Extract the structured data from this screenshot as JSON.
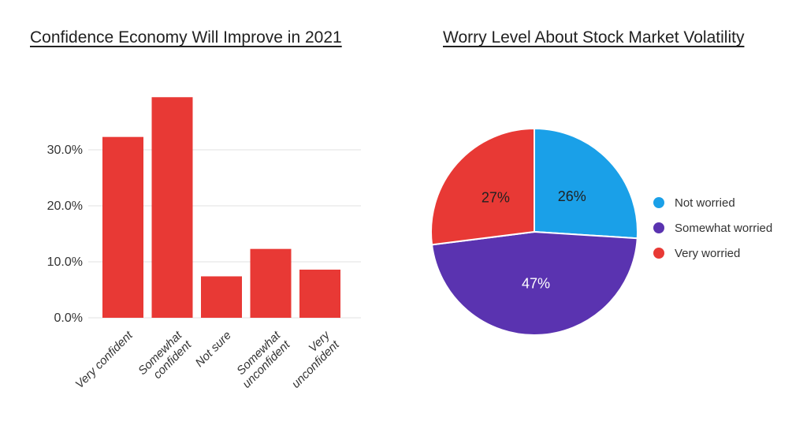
{
  "page": {
    "background_color": "#ffffff"
  },
  "chart_data": [
    {
      "type": "bar",
      "title": "Confidence Economy Will Improve in 2021",
      "categories": [
        "Very confident",
        "Somewhat confident",
        "Not sure",
        "Somewhat unconfident",
        "Very unconfident"
      ],
      "category_lines": [
        [
          "Very confident"
        ],
        [
          "Somewhat",
          "confident"
        ],
        [
          "Not sure"
        ],
        [
          "Somewhat",
          "unconfident"
        ],
        [
          "Very",
          "unconfident"
        ]
      ],
      "values": [
        32.3,
        39.4,
        7.4,
        12.3,
        8.6
      ],
      "value_unit": "%",
      "ytick_labels": [
        "0.0%",
        "10.0%",
        "20.0%",
        "30.0%"
      ],
      "ytick_values": [
        0,
        10,
        20,
        30
      ],
      "ylim": [
        0,
        40
      ],
      "grid": true,
      "xlabel": "",
      "ylabel": "",
      "bar_color": "#E83935",
      "grid_color": "#E6E6E6",
      "axis_text_color": "#333333",
      "x_label_rotation_deg": -45
    },
    {
      "type": "pie",
      "title": "Worry Level About Stock Market Volatility",
      "labels": [
        "Not worried",
        "Somewhat worried",
        "Very worried"
      ],
      "values": [
        26,
        47,
        27
      ],
      "slice_labels": [
        "26%",
        "47%",
        "27%"
      ],
      "colors": [
        "#1AA0E8",
        "#5A33B0",
        "#E83935"
      ],
      "label_text_colors": [
        "#212121",
        "#ffffff",
        "#212121"
      ],
      "legend_position": "right",
      "legend_text_color": "#333333",
      "start_angle_deg": 0,
      "direction": "clockwise"
    }
  ]
}
